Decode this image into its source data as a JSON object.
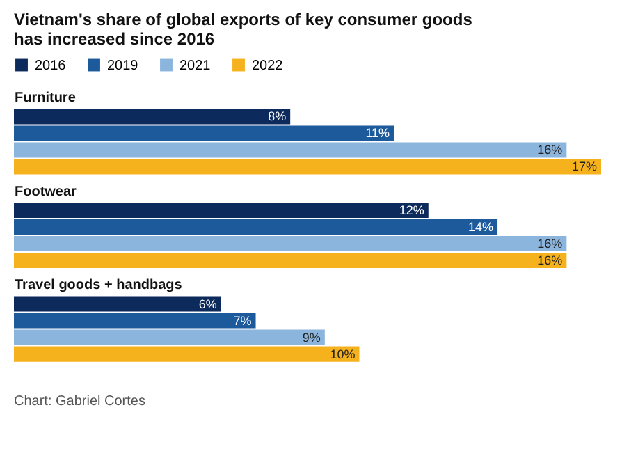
{
  "chart_data": {
    "type": "bar",
    "orientation": "horizontal",
    "title": "Vietnam's share of global exports of key consumer goods has increased since 2016",
    "categories": [
      "Furniture",
      "Footwear",
      "Travel goods + handbags"
    ],
    "series": [
      {
        "name": "2016",
        "color": "#0c2a5b",
        "values": [
          8,
          12,
          6
        ],
        "value_labels": [
          "8%",
          "12%",
          "6%"
        ]
      },
      {
        "name": "2019",
        "color": "#1d5a9c",
        "values": [
          11,
          14,
          7
        ],
        "value_labels": [
          "11%",
          "14%",
          "7%"
        ]
      },
      {
        "name": "2021",
        "color": "#8cb5dd",
        "values": [
          16,
          16,
          9
        ],
        "value_labels": [
          "16%",
          "16%",
          "9%"
        ]
      },
      {
        "name": "2022",
        "color": "#f6b21c",
        "values": [
          17,
          16,
          10
        ],
        "value_labels": [
          "17%",
          "16%",
          "10%"
        ]
      }
    ],
    "legend": "top left",
    "annotations": [
      "Chart: Gabriel Cortes"
    ]
  }
}
